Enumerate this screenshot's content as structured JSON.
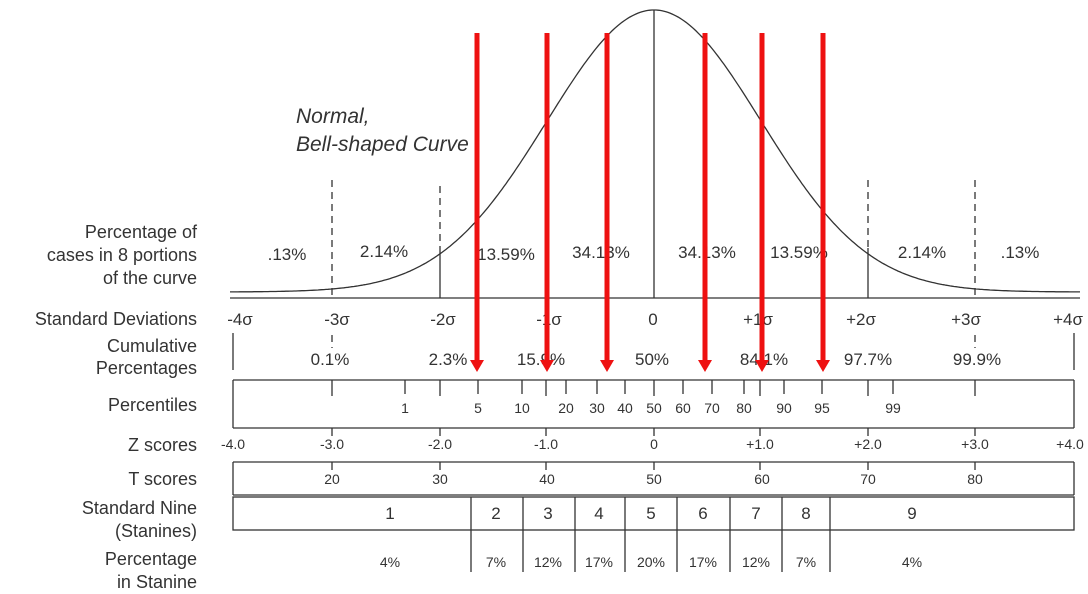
{
  "title": {
    "line1": "Normal,",
    "line2": "Bell-shaped Curve"
  },
  "row_labels": {
    "pct_cases": [
      "Percentage of",
      "cases in 8 portions",
      "of the curve"
    ],
    "std_dev": "Standard Deviations",
    "cumulative": [
      "Cumulative",
      "Percentages"
    ],
    "percentiles": "Percentiles",
    "z": "Z scores",
    "t": "T scores",
    "stanine": [
      "Standard Nine",
      "(Stanines)"
    ],
    "pct_stanine": [
      "Percentage",
      "in Stanine"
    ]
  },
  "portions": [
    ".13%",
    "2.14%",
    "13.59%",
    "34.13%",
    "34.13%",
    "13.59%",
    "2.14%",
    ".13%"
  ],
  "sd_labels": [
    "-4σ",
    "-3σ",
    "-2σ",
    "-1σ",
    "0",
    "+1σ",
    "+2σ",
    "+3σ",
    "+4σ"
  ],
  "cumulative": [
    "0.1%",
    "2.3%",
    "15.9%",
    "50%",
    "84.1%",
    "97.7%",
    "99.9%"
  ],
  "percentiles": [
    "1",
    "5",
    "10",
    "20",
    "30",
    "40",
    "50",
    "60",
    "70",
    "80",
    "90",
    "95",
    "99"
  ],
  "z_scores": [
    "-4.0",
    "-3.0",
    "-2.0",
    "-1.0",
    "0",
    "+1.0",
    "+2.0",
    "+3.0",
    "+4.0"
  ],
  "t_scores": [
    "20",
    "30",
    "40",
    "50",
    "60",
    "70",
    "80"
  ],
  "stanines": [
    "1",
    "2",
    "3",
    "4",
    "5",
    "6",
    "7",
    "8",
    "9"
  ],
  "stanine_pct": [
    "4%",
    "7%",
    "12%",
    "17%",
    "20%",
    "17%",
    "12%",
    "7%",
    "4%"
  ],
  "arrow_color": "#ee1111"
}
